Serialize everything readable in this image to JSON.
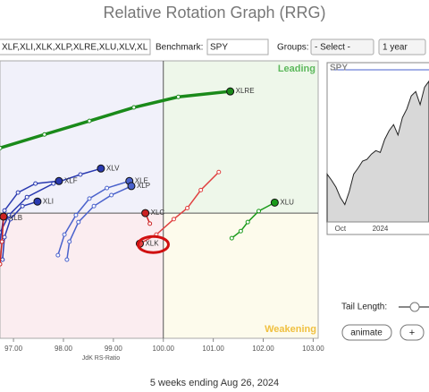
{
  "header": {
    "title": "Relative Rotation Graph (RRG)"
  },
  "controls": {
    "symbols": "XLF,XLI,XLK,XLP,XLRE,XLU,XLV,XL",
    "benchmark_label": "Benchmark:",
    "benchmark": "SPY",
    "groups_label": "Groups:",
    "groups": "- Select -",
    "period": "1 year",
    "tail_length_label": "Tail Length:",
    "animate": "animate",
    "plus": "+"
  },
  "chart_data": {
    "type": "scatter",
    "x_label": "JdK RS-Ratio",
    "quadrants": {
      "leading": "Leading",
      "weakening": "Weakening"
    },
    "xlim": [
      96.73,
      103.1
    ],
    "ylim": [
      97.5,
      103.04
    ],
    "xticks": [
      {
        "value": 97,
        "label": "97.00"
      },
      {
        "value": 98,
        "label": "98.00"
      },
      {
        "value": 99,
        "label": "99.00"
      },
      {
        "value": 100,
        "label": "100.00"
      },
      {
        "value": 101,
        "label": "101.00"
      },
      {
        "value": 102,
        "label": "102.00"
      },
      {
        "value": 103,
        "label": "103.00"
      }
    ],
    "series": [
      {
        "name": "XLRE",
        "color": "#1a8a1a",
        "x": [
          96.73,
          97.62,
          98.52,
          99.41,
          100.3,
          101.34
        ],
        "y": [
          101.3,
          101.57,
          101.84,
          102.11,
          102.32,
          102.43
        ]
      },
      {
        "name": "XLV",
        "color": "#2a3ab0",
        "x": [
          96.73,
          96.91,
          97.27,
          97.8,
          98.34,
          98.75
        ],
        "y": [
          99.61,
          99.96,
          100.32,
          100.59,
          100.77,
          100.89
        ]
      },
      {
        "name": "XLF",
        "color": "#2a3ab0",
        "x": [
          96.73,
          96.82,
          97.09,
          97.44,
          97.91
        ],
        "y": [
          99.43,
          100.05,
          100.41,
          100.59,
          100.64
        ]
      },
      {
        "name": "XLE",
        "color": "#4a62cc",
        "x": [
          97.89,
          98.02,
          98.25,
          98.52,
          98.87,
          99.32
        ],
        "y": [
          99.16,
          99.57,
          99.96,
          100.29,
          100.5,
          100.64
        ]
      },
      {
        "name": "XLP",
        "color": "#4a62cc",
        "x": [
          98.07,
          98.12,
          98.3,
          98.61,
          98.96,
          99.36
        ],
        "y": [
          99.07,
          99.43,
          99.82,
          100.14,
          100.36,
          100.54
        ]
      },
      {
        "name": "XLI",
        "color": "#2a3ab0",
        "x": [
          96.78,
          96.82,
          96.94,
          97.18,
          97.48
        ],
        "y": [
          99.07,
          99.52,
          99.88,
          100.14,
          100.23
        ]
      },
      {
        "name": "XLB",
        "color": "#cc2222",
        "x": [
          96.73,
          96.77,
          96.8
        ],
        "y": [
          98.98,
          99.43,
          99.93
        ]
      },
      {
        "name": "XLC",
        "color": "#cc2222",
        "x": [
          99.73,
          99.64
        ],
        "y": [
          99.79,
          100.0
        ]
      },
      {
        "name": "XLK",
        "color": "#e04040",
        "x": [
          101.11,
          100.75,
          100.48,
          100.21,
          99.86,
          99.53
        ],
        "y": [
          100.82,
          100.46,
          100.1,
          99.88,
          99.57,
          99.39
        ]
      },
      {
        "name": "XLU",
        "color": "#1a9a1a",
        "x": [
          101.37,
          101.55,
          101.69,
          101.91,
          102.23
        ],
        "y": [
          99.5,
          99.64,
          99.82,
          100.04,
          100.21
        ]
      }
    ]
  },
  "benchmark_chart": {
    "type": "area",
    "title": "SPY",
    "color": "#d8d8d8",
    "categories": [
      null,
      null,
      null,
      "Oct",
      null,
      null,
      null,
      null,
      null,
      null,
      null,
      null,
      "2024",
      null,
      null,
      null,
      null,
      null,
      null,
      null,
      null,
      null,
      null,
      null
    ],
    "values": [
      455,
      448,
      440,
      428,
      420,
      435,
      455,
      462,
      470,
      472,
      478,
      482,
      480,
      495,
      505,
      512,
      500,
      520,
      530,
      545,
      550,
      535,
      555,
      562
    ],
    "ylim": [
      400,
      575
    ]
  },
  "footer": "5 weeks ending Aug 26, 2024"
}
